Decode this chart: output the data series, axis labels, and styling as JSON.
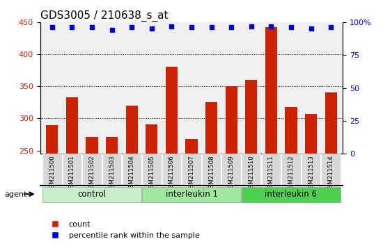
{
  "title": "GDS3005 / 210638_s_at",
  "samples": [
    "GSM211500",
    "GSM211501",
    "GSM211502",
    "GSM211503",
    "GSM211504",
    "GSM211505",
    "GSM211506",
    "GSM211507",
    "GSM211508",
    "GSM211509",
    "GSM211510",
    "GSM211511",
    "GSM211512",
    "GSM211513",
    "GSM211514"
  ],
  "counts": [
    290,
    333,
    271,
    271,
    320,
    291,
    381,
    268,
    325,
    350,
    360,
    442,
    318,
    307,
    340
  ],
  "percentile_ranks": [
    96,
    96,
    96,
    94,
    96,
    95,
    97,
    96,
    96,
    96,
    97,
    97,
    96,
    95,
    96
  ],
  "groups": [
    {
      "label": "control",
      "start": 0,
      "end": 4,
      "color": "#c8f0c8"
    },
    {
      "label": "interleukin 1",
      "start": 5,
      "end": 9,
      "color": "#a0e8a0"
    },
    {
      "label": "interleukin 6",
      "start": 10,
      "end": 14,
      "color": "#50d050"
    }
  ],
  "bar_color": "#cc2200",
  "dot_color": "#0000cc",
  "ylim_left": [
    245,
    450
  ],
  "ylim_right": [
    0,
    100
  ],
  "yticks_left": [
    250,
    300,
    350,
    400,
    450
  ],
  "yticks_right": [
    0,
    25,
    50,
    75,
    100
  ],
  "yticklabels_right": [
    "0",
    "25",
    "50",
    "75",
    "100%"
  ],
  "grid_values": [
    300,
    350,
    400
  ],
  "bar_width": 0.6,
  "plot_bg_color": "#efefef",
  "title_fontsize": 11,
  "axis_fontsize": 8,
  "legend_fontsize": 8
}
